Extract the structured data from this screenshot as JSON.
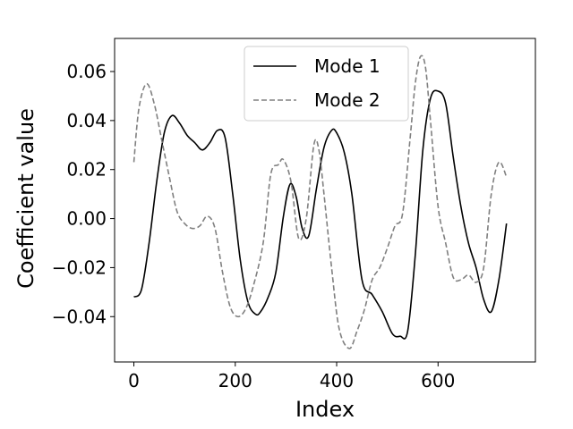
{
  "chart_data": {
    "type": "line",
    "title": "",
    "xlabel": "Index",
    "ylabel": "Coefficient value",
    "xlim": [
      -38,
      792
    ],
    "ylim": [
      -0.0585,
      0.0735
    ],
    "xticks": [
      0,
      200,
      400,
      600
    ],
    "xtick_labels": [
      "0",
      "200",
      "400",
      "600"
    ],
    "yticks": [
      -0.04,
      -0.02,
      0.0,
      0.02,
      0.04,
      0.06
    ],
    "ytick_labels": [
      "−0.04",
      "−0.02",
      "0.00",
      "0.02",
      "0.04",
      "0.06"
    ],
    "grid": false,
    "legend_position": "top-right",
    "series": [
      {
        "name": "Mode 1",
        "color": "#000000",
        "style": "solid",
        "x": [
          0,
          15,
          30,
          45,
          60,
          75,
          90,
          105,
          120,
          135,
          150,
          165,
          180,
          195,
          210,
          225,
          240,
          250,
          265,
          280,
          295,
          308,
          320,
          332,
          345,
          360,
          375,
          390,
          400,
          415,
          430,
          450,
          470,
          490,
          510,
          525,
          540,
          555,
          570,
          585,
          600,
          615,
          630,
          645,
          660,
          675,
          690,
          705,
          720,
          735
        ],
        "y": [
          -0.032,
          -0.029,
          -0.01,
          0.015,
          0.035,
          0.042,
          0.039,
          0.034,
          0.031,
          0.028,
          0.031,
          0.036,
          0.033,
          0.01,
          -0.017,
          -0.034,
          -0.039,
          -0.038,
          -0.032,
          -0.022,
          0.001,
          0.014,
          0.009,
          -0.004,
          -0.007,
          0.012,
          0.029,
          0.036,
          0.035,
          0.027,
          0.01,
          -0.025,
          -0.031,
          -0.038,
          -0.047,
          -0.048,
          -0.046,
          -0.015,
          0.028,
          0.049,
          0.052,
          0.047,
          0.025,
          0.005,
          -0.01,
          -0.02,
          -0.033,
          -0.038,
          -0.025,
          -0.002
        ]
      },
      {
        "name": "Mode 2",
        "color": "#808080",
        "style": "dashed",
        "x": [
          0,
          10,
          25,
          40,
          55,
          70,
          85,
          100,
          115,
          130,
          145,
          160,
          175,
          190,
          205,
          220,
          235,
          255,
          270,
          285,
          295,
          310,
          325,
          340,
          355,
          365,
          375,
          390,
          405,
          425,
          440,
          455,
          470,
          485,
          500,
          515,
          530,
          545,
          555,
          565,
          575,
          585,
          600,
          615,
          630,
          645,
          660,
          675,
          690,
          705,
          720,
          735
        ],
        "y": [
          0.023,
          0.045,
          0.055,
          0.047,
          0.032,
          0.017,
          0.003,
          -0.002,
          -0.004,
          -0.003,
          0.001,
          -0.004,
          -0.022,
          -0.036,
          -0.04,
          -0.037,
          -0.028,
          -0.01,
          0.018,
          0.022,
          0.024,
          0.015,
          -0.008,
          0.0,
          0.03,
          0.028,
          0.01,
          -0.02,
          -0.045,
          -0.053,
          -0.046,
          -0.037,
          -0.025,
          -0.02,
          -0.012,
          -0.003,
          0.002,
          0.033,
          0.055,
          0.066,
          0.062,
          0.04,
          0.005,
          -0.01,
          -0.024,
          -0.025,
          -0.023,
          -0.026,
          -0.02,
          0.01,
          0.023,
          0.017
        ]
      }
    ]
  }
}
